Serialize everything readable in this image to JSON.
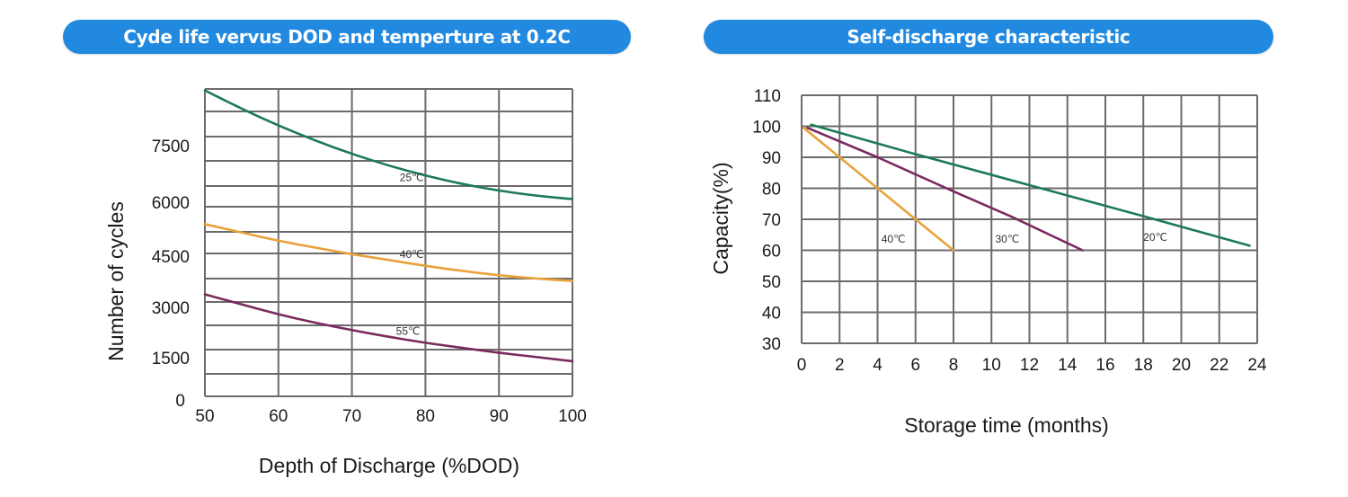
{
  "chart_data": [
    {
      "type": "line",
      "title": "Cyde life vervus DOD and temperture at 0.2C",
      "xlabel": "Depth of Discharge (%DOD)",
      "ylabel": "Number of cycles",
      "xlim": [
        50,
        100
      ],
      "ylim": [
        0,
        9200
      ],
      "xticks": [
        "50",
        "60",
        "70",
        "80",
        "90",
        "100"
      ],
      "yticks": [
        "0",
        "1500",
        "3000",
        "4500",
        "6000",
        "7500"
      ],
      "grid": true,
      "legend": "inline-labels",
      "series": [
        {
          "name": "25℃",
          "color": "#1d7a55",
          "x": [
            50,
            55,
            60,
            65,
            70,
            75,
            80,
            85,
            90,
            95,
            100
          ],
          "y": [
            9150,
            8600,
            8100,
            7650,
            7250,
            6900,
            6600,
            6350,
            6150,
            6000,
            5900
          ]
        },
        {
          "name": "40℃",
          "color": "#e8a23a",
          "x": [
            50,
            55,
            60,
            65,
            70,
            75,
            80,
            85,
            90,
            95,
            100
          ],
          "y": [
            5150,
            4900,
            4650,
            4450,
            4250,
            4080,
            3900,
            3750,
            3620,
            3520,
            3450
          ]
        },
        {
          "name": "55℃",
          "color": "#7a2b5e",
          "x": [
            50,
            55,
            60,
            65,
            70,
            75,
            80,
            85,
            90,
            95,
            100
          ],
          "y": [
            3050,
            2750,
            2450,
            2200,
            1980,
            1780,
            1600,
            1450,
            1300,
            1180,
            1050
          ]
        }
      ],
      "annotations": [
        {
          "text": "25℃",
          "x": 76.5,
          "y": 6550
        },
        {
          "text": "40℃",
          "x": 76.5,
          "y": 4250
        },
        {
          "text": "55℃",
          "x": 76,
          "y": 1950
        }
      ]
    },
    {
      "type": "line",
      "title": "Self-discharge characteristic",
      "xlabel": "Storage time (months)",
      "ylabel": "Capacity(%)",
      "xlim": [
        0,
        24
      ],
      "ylim": [
        30,
        110
      ],
      "xticks": [
        "0",
        "2",
        "4",
        "6",
        "8",
        "10",
        "12",
        "14",
        "16",
        "18",
        "20",
        "22",
        "24"
      ],
      "yticks": [
        "30",
        "40",
        "50",
        "60",
        "70",
        "80",
        "90",
        "100",
        "110"
      ],
      "grid": true,
      "legend": "inline-labels",
      "series": [
        {
          "name": "20℃",
          "color": "#1d7a55",
          "x": [
            0.5,
            6,
            12,
            18,
            23.6
          ],
          "y": [
            100.5,
            91,
            81,
            71,
            61.5
          ]
        },
        {
          "name": "30℃",
          "color": "#7a2b5e",
          "x": [
            0.3,
            4,
            8,
            11,
            14.8
          ],
          "y": [
            99.5,
            90,
            79,
            71,
            60
          ]
        },
        {
          "name": "40℃",
          "color": "#e8a23a",
          "x": [
            0.1,
            1,
            2,
            4,
            6,
            8
          ],
          "y": [
            99.5,
            95,
            90,
            80,
            70,
            60
          ]
        }
      ],
      "annotations": [
        {
          "text": "40℃",
          "x": 4.2,
          "y": 62.5
        },
        {
          "text": "30℃",
          "x": 10.2,
          "y": 62.5
        },
        {
          "text": "20℃",
          "x": 18,
          "y": 63
        }
      ]
    }
  ]
}
